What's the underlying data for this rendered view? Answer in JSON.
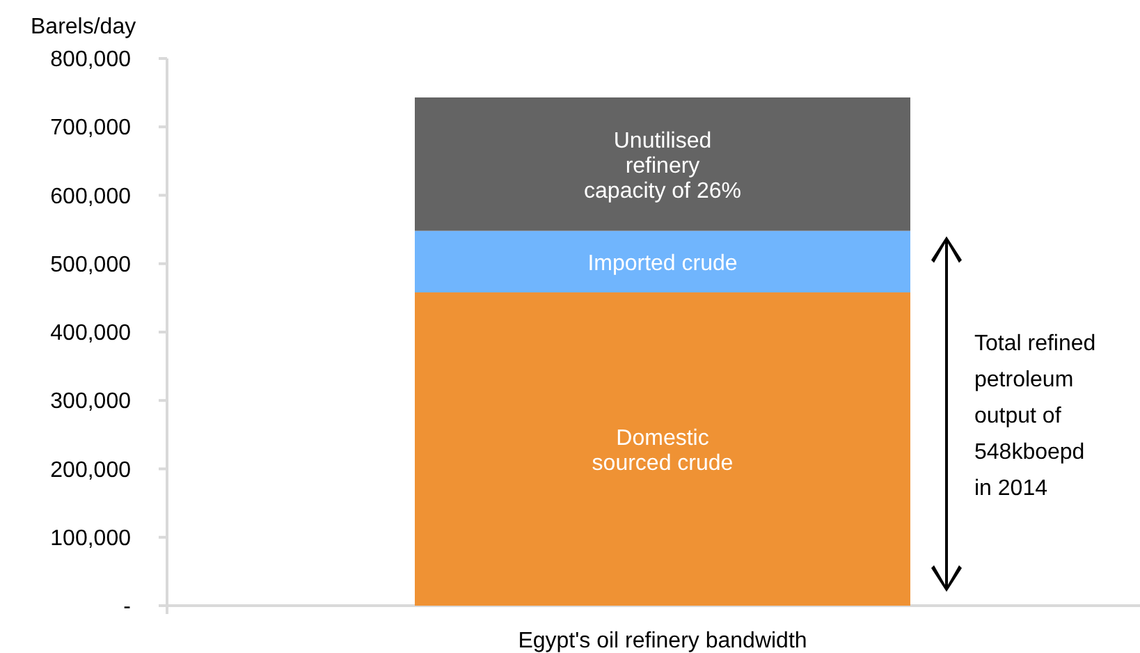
{
  "chart_data": {
    "type": "bar",
    "stacked": true,
    "ylabel": "Barels/day",
    "categories": [
      "Egypt's oil refinery bandwidth"
    ],
    "series": [
      {
        "name": "Domestic\nsourced crude",
        "color": "#ef9234",
        "values": [
          458000
        ]
      },
      {
        "name": "Imported crude",
        "color": "#70b5fd",
        "values": [
          90000
        ]
      },
      {
        "name": "Unutilised\nrefinery\ncapacity of 26%",
        "color": "#646464",
        "values": [
          195000
        ]
      }
    ],
    "ylim": [
      0,
      800000
    ],
    "yticks": [
      {
        "value": 0,
        "label": "-"
      },
      {
        "value": 100000,
        "label": "100,000"
      },
      {
        "value": 200000,
        "label": "200,000"
      },
      {
        "value": 300000,
        "label": "300,000"
      },
      {
        "value": 400000,
        "label": "400,000"
      },
      {
        "value": 500000,
        "label": "500,000"
      },
      {
        "value": 600000,
        "label": "600,000"
      },
      {
        "value": 700000,
        "label": "700,000"
      },
      {
        "value": 800000,
        "label": "800,000"
      }
    ],
    "annotations": [
      "Total refined\npetroleum\noutput of\n548kboepd\nin 2014"
    ]
  }
}
